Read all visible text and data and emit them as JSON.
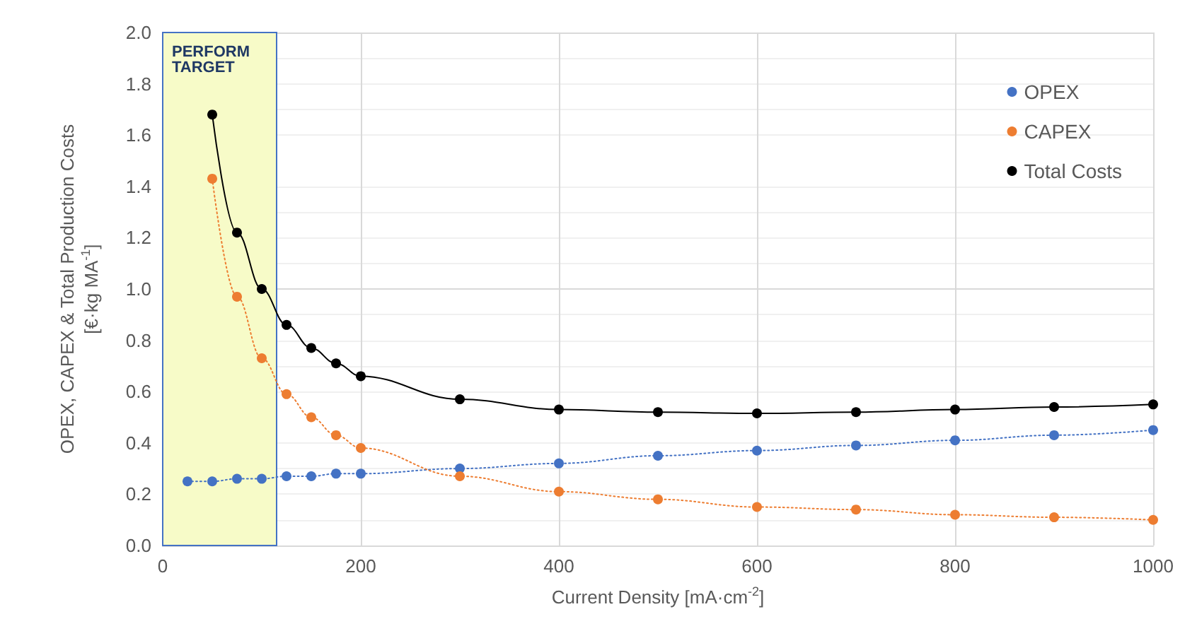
{
  "chart_data": {
    "type": "line",
    "xlabel": "Current Density [mA·cm$^{-2}$]",
    "ylabel": "OPEX, CAPEX & Total Production Costs\n[€·kg MA$^{-1}$]",
    "x": [
      25,
      50,
      75,
      100,
      125,
      150,
      175,
      200,
      300,
      400,
      500,
      600,
      700,
      800,
      900,
      1000
    ],
    "series": [
      {
        "name": "OPEX",
        "color": "#4472c4",
        "line_style": "dotted",
        "values": [
          0.25,
          0.25,
          0.26,
          0.26,
          0.27,
          0.27,
          0.28,
          0.28,
          0.3,
          0.32,
          0.35,
          0.37,
          0.39,
          0.41,
          0.43,
          0.45
        ]
      },
      {
        "name": "CAPEX",
        "color": "#ed7d31",
        "line_style": "dotted",
        "values": [
          null,
          1.43,
          0.97,
          0.73,
          0.59,
          0.5,
          0.43,
          0.38,
          0.27,
          0.21,
          0.18,
          0.15,
          0.14,
          0.12,
          0.11,
          0.1
        ]
      },
      {
        "name": "Total Costs",
        "color": "#000000",
        "line_style": "solid",
        "values": [
          null,
          1.68,
          1.22,
          1.0,
          0.86,
          0.77,
          0.71,
          0.66,
          0.57,
          0.53,
          0.52,
          0.515,
          0.52,
          0.53,
          0.54,
          0.55
        ]
      }
    ],
    "xlim": [
      0,
      1000
    ],
    "xticks": [
      0,
      200,
      400,
      600,
      800,
      1000
    ],
    "ylim": [
      0,
      2
    ],
    "yticks": [
      {
        "value": 0,
        "label": "0.0"
      },
      {
        "value": 0.2,
        "label": "0.2"
      },
      {
        "value": 0.4,
        "label": "0.4"
      },
      {
        "value": 0.6,
        "label": "0.6"
      },
      {
        "value": 0.8,
        "label": "0.8"
      },
      {
        "value": 1,
        "label": "1.0"
      },
      {
        "value": 1.2,
        "label": "1.2"
      },
      {
        "value": 1.4,
        "label": "1.4"
      },
      {
        "value": 1.6,
        "label": "1.6"
      },
      {
        "value": 1.8,
        "label": "1.8"
      },
      {
        "value": 2,
        "label": "2.0"
      }
    ],
    "bands": [
      {
        "axis": "x",
        "from": 0,
        "to": 115,
        "label": "PERFORM\nTARGET",
        "color": "#f7fbc8"
      }
    ],
    "grid": true,
    "legend": "top right",
    "marker": "circle"
  }
}
